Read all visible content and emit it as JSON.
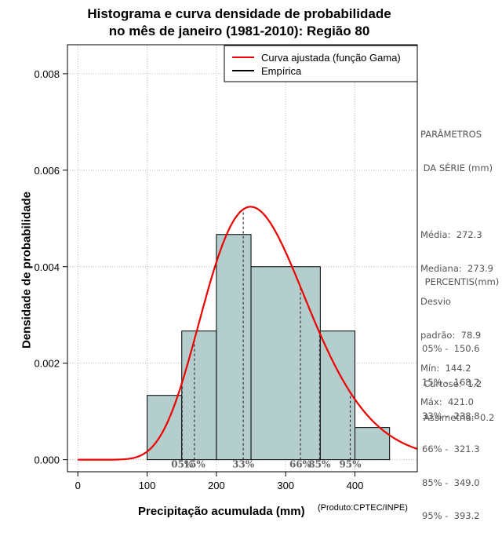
{
  "title_line1": "Histograma e curva densidade de probabilidade",
  "title_line2": "no mês de janeiro (1981-2010): Região 80",
  "chart_data": {
    "type": "histogram",
    "xlabel": "Precipitação acumulada (mm)",
    "ylabel": "Densidade de probabilidade",
    "source_note": "(Produto:CPTEC/INPE)",
    "xlim": [
      -15,
      490
    ],
    "ylim": [
      -0.00025,
      0.0086
    ],
    "x_ticks": [
      0,
      100,
      200,
      300,
      400
    ],
    "y_ticks": [
      0.0,
      0.002,
      0.004,
      0.006,
      0.008
    ],
    "y_tick_labels": [
      "0.000",
      "0.002",
      "0.004",
      "0.006",
      "0.008"
    ],
    "bins": [
      {
        "from": 100,
        "to": 150,
        "density": 0.001333
      },
      {
        "from": 150,
        "to": 200,
        "density": 0.002667
      },
      {
        "from": 200,
        "to": 250,
        "density": 0.004667
      },
      {
        "from": 250,
        "to": 350,
        "density": 0.004
      },
      {
        "from": 350,
        "to": 400,
        "density": 0.002667
      },
      {
        "from": 400,
        "to": 450,
        "density": 0.000667
      }
    ],
    "gamma_fit": {
      "mean": 272.3,
      "sd": 78.9
    },
    "percentile_lines": [
      {
        "label": "05%",
        "value": 150.6
      },
      {
        "label": "15%",
        "value": 168.2
      },
      {
        "label": "33%",
        "value": 238.8
      },
      {
        "label": "66%",
        "value": 321.3
      },
      {
        "label": "85%",
        "value": 349.0
      },
      {
        "label": "95%",
        "value": 393.2
      }
    ],
    "legend": [
      {
        "label": "Curva ajustada (função Gama)",
        "color": "#ee0000"
      },
      {
        "label": "Empírica",
        "color": "#000000"
      }
    ],
    "colors": {
      "bar_fill": "#b4cdcd",
      "curve": "#ee0000",
      "grid": "#bbbbbb"
    }
  },
  "params": {
    "header1": "PARÂMETROS",
    "header2": " DA SÉRIE (mm)",
    "lines": [
      "Média:  272.3",
      "Mediana:  273.9",
      "Desvio",
      "padrão:  78.9",
      "Mín:  144.2",
      "Máx:  421.0"
    ]
  },
  "percentis": {
    "header": " PERCENTIS(mm)",
    "lines": [
      "05% -  150.6",
      "15% -  168.2",
      "33% -  238.8",
      "66% -  321.3",
      "85% -  349.0",
      "95% -  393.2"
    ]
  },
  "shape": {
    "lines": [
      "Curtose:  1.2",
      "Assimetria:  0.2"
    ]
  }
}
